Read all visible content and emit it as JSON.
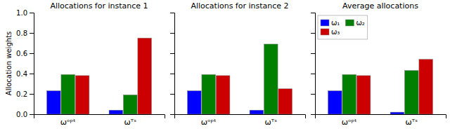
{
  "chart_data": [
    {
      "type": "bar",
      "title": "Allocations for instance 1",
      "y_label": "Allocation weights",
      "categories": [
        "ωᵒᵖᵗ",
        "ωᵀˢ"
      ],
      "series": [
        {
          "color": "#0000ff",
          "values": [
            0.23,
            0.04
          ]
        },
        {
          "color": "#007f00",
          "values": [
            0.39,
            0.19
          ]
        },
        {
          "color": "#cc0000",
          "values": [
            0.38,
            0.75
          ]
        }
      ],
      "ylim": [
        0.0,
        1.0
      ],
      "yticks": [
        {
          "value": 0.0,
          "label": "0.0"
        },
        0.2,
        0.4,
        0.6,
        0.8,
        {
          "value": 1.0,
          "label": "1.0"
        }
      ],
      "grid": false
    },
    {
      "type": "bar",
      "title": "Allocations for instance 2",
      "categories": [
        "ωᵒᵖᵗ",
        "ωᵀˢ"
      ],
      "series": [
        {
          "color": "#0000ff",
          "values": [
            0.23,
            0.04
          ]
        },
        {
          "color": "#007f00",
          "values": [
            0.39,
            0.69
          ]
        },
        {
          "color": "#cc0000",
          "values": [
            0.38,
            0.25
          ]
        }
      ],
      "ylim": [
        0.0,
        1.0
      ],
      "yticks": [
        0.0,
        0.2,
        0.4,
        0.6,
        0.8,
        1.0
      ],
      "tick_labels": "x",
      "grid": false
    },
    {
      "type": "bar",
      "title": "Average allocations",
      "categories": [
        "ωᵒᵖᵗ",
        "ωᵀˢ"
      ],
      "series": [
        {
          "name": "ω₁",
          "color": "#0000ff",
          "values": [
            0.23,
            0.02
          ]
        },
        {
          "name": "ω₂",
          "color": "#007f00",
          "values": [
            0.39,
            0.43
          ]
        },
        {
          "name": "ω₃",
          "color": "#cc0000",
          "values": [
            0.38,
            0.54
          ]
        }
      ],
      "ylim": [
        0.0,
        1.0
      ],
      "yticks": [
        0.0,
        0.2,
        0.4,
        0.6,
        0.8,
        1.0
      ],
      "tick_labels": "x",
      "legend": "upper left",
      "grid": false
    }
  ]
}
